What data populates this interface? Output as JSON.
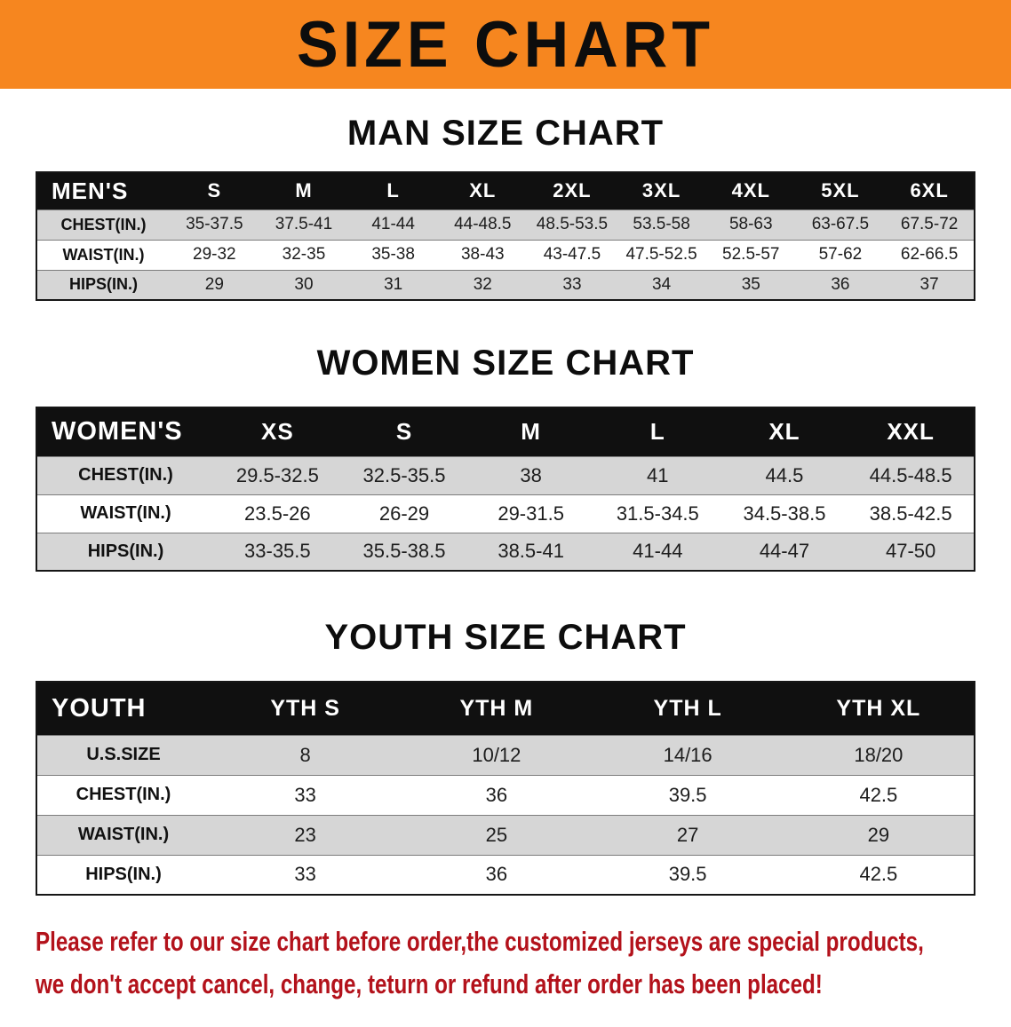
{
  "banner": {
    "title": "SIZE CHART"
  },
  "colors": {
    "banner-orange": "#f6861f",
    "header-black": "#101010",
    "stripe-gray": "#d6d6d6",
    "disclaimer-red": "#b3121b"
  },
  "sections": [
    {
      "id": "men",
      "heading": "MAN SIZE CHART",
      "table": {
        "header": [
          "MEN'S",
          "S",
          "M",
          "L",
          "XL",
          "2XL",
          "3XL",
          "4XL",
          "5XL",
          "6XL"
        ],
        "rows": [
          [
            "CHEST(IN.)",
            "35-37.5",
            "37.5-41",
            "41-44",
            "44-48.5",
            "48.5-53.5",
            "53.5-58",
            "58-63",
            "63-67.5",
            "67.5-72"
          ],
          [
            "WAIST(IN.)",
            "29-32",
            "32-35",
            "35-38",
            "38-43",
            "43-47.5",
            "47.5-52.5",
            "52.5-57",
            "57-62",
            "62-66.5"
          ],
          [
            "HIPS(IN.)",
            "29",
            "30",
            "31",
            "32",
            "33",
            "34",
            "35",
            "36",
            "37"
          ]
        ]
      }
    },
    {
      "id": "women",
      "heading": "WOMEN SIZE CHART",
      "table": {
        "header": [
          "WOMEN'S",
          "XS",
          "S",
          "M",
          "L",
          "XL",
          "XXL"
        ],
        "rows": [
          [
            "CHEST(IN.)",
            "29.5-32.5",
            "32.5-35.5",
            "38",
            "41",
            "44.5",
            "44.5-48.5"
          ],
          [
            "WAIST(IN.)",
            "23.5-26",
            "26-29",
            "29-31.5",
            "31.5-34.5",
            "34.5-38.5",
            "38.5-42.5"
          ],
          [
            "HIPS(IN.)",
            "33-35.5",
            "35.5-38.5",
            "38.5-41",
            "41-44",
            "44-47",
            "47-50"
          ]
        ]
      }
    },
    {
      "id": "youth",
      "heading": "YOUTH SIZE CHART",
      "table": {
        "header": [
          "YOUTH",
          "YTH S",
          "YTH M",
          "YTH L",
          "YTH XL"
        ],
        "rows": [
          [
            "U.S.SIZE",
            "8",
            "10/12",
            "14/16",
            "18/20"
          ],
          [
            "CHEST(IN.)",
            "33",
            "36",
            "39.5",
            "42.5"
          ],
          [
            "WAIST(IN.)",
            "23",
            "25",
            "27",
            "29"
          ],
          [
            "HIPS(IN.)",
            "33",
            "36",
            "39.5",
            "42.5"
          ]
        ]
      }
    }
  ],
  "disclaimer": {
    "lines": [
      "Please refer to our size chart before order,the customized jerseys are special products,",
      "we don't accept cancel, change, teturn or refund after order has been placed!"
    ]
  }
}
